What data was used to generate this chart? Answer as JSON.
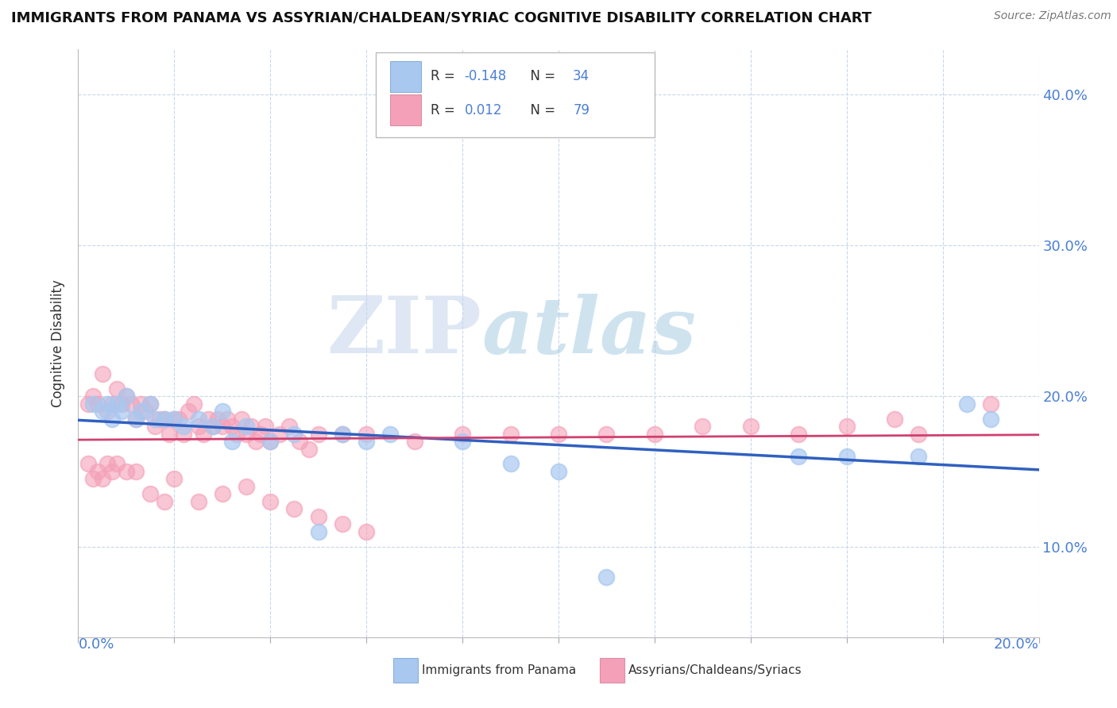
{
  "title": "IMMIGRANTS FROM PANAMA VS ASSYRIAN/CHALDEAN/SYRIAC COGNITIVE DISABILITY CORRELATION CHART",
  "source": "Source: ZipAtlas.com",
  "ylabel": "Cognitive Disability",
  "y_ticks": [
    0.1,
    0.2,
    0.3,
    0.4
  ],
  "y_tick_labels": [
    "10.0%",
    "20.0%",
    "30.0%",
    "40.0%"
  ],
  "x_range": [
    0.0,
    0.2
  ],
  "y_range": [
    0.04,
    0.43
  ],
  "blue_color": "#a8c8f0",
  "pink_color": "#f4a0b8",
  "blue_line_color": "#3060c0",
  "pink_line_color": "#d04070",
  "watermark_zip": "ZIP",
  "watermark_atlas": "atlas",
  "legend_label_blue": "Immigrants from Panama",
  "legend_label_pink": "Assyrians/Chaldeans/Syriacs",
  "blue_scatter_x": [
    0.003,
    0.005,
    0.006,
    0.007,
    0.008,
    0.009,
    0.01,
    0.012,
    0.013,
    0.015,
    0.016,
    0.018,
    0.02,
    0.022,
    0.025,
    0.028,
    0.03,
    0.032,
    0.035,
    0.04,
    0.045,
    0.05,
    0.055,
    0.06,
    0.065,
    0.08,
    0.09,
    0.1,
    0.11,
    0.15,
    0.16,
    0.175,
    0.185,
    0.19
  ],
  "blue_scatter_y": [
    0.195,
    0.19,
    0.195,
    0.185,
    0.195,
    0.19,
    0.2,
    0.185,
    0.19,
    0.195,
    0.185,
    0.185,
    0.185,
    0.18,
    0.185,
    0.18,
    0.19,
    0.17,
    0.18,
    0.17,
    0.175,
    0.11,
    0.175,
    0.17,
    0.175,
    0.17,
    0.155,
    0.15,
    0.08,
    0.16,
    0.16,
    0.16,
    0.195,
    0.185
  ],
  "pink_scatter_x": [
    0.002,
    0.003,
    0.004,
    0.005,
    0.006,
    0.007,
    0.008,
    0.009,
    0.01,
    0.011,
    0.012,
    0.013,
    0.014,
    0.015,
    0.016,
    0.017,
    0.018,
    0.019,
    0.02,
    0.021,
    0.022,
    0.023,
    0.024,
    0.025,
    0.026,
    0.027,
    0.028,
    0.029,
    0.03,
    0.031,
    0.032,
    0.033,
    0.034,
    0.035,
    0.036,
    0.037,
    0.038,
    0.039,
    0.04,
    0.042,
    0.044,
    0.046,
    0.048,
    0.05,
    0.055,
    0.06,
    0.07,
    0.08,
    0.09,
    0.1,
    0.11,
    0.12,
    0.13,
    0.14,
    0.15,
    0.16,
    0.17,
    0.175,
    0.19,
    0.002,
    0.003,
    0.004,
    0.005,
    0.006,
    0.007,
    0.008,
    0.01,
    0.012,
    0.015,
    0.018,
    0.02,
    0.025,
    0.03,
    0.035,
    0.04,
    0.045,
    0.05,
    0.055,
    0.06
  ],
  "pink_scatter_y": [
    0.195,
    0.2,
    0.195,
    0.215,
    0.19,
    0.195,
    0.205,
    0.195,
    0.2,
    0.195,
    0.185,
    0.195,
    0.19,
    0.195,
    0.18,
    0.185,
    0.185,
    0.175,
    0.185,
    0.185,
    0.175,
    0.19,
    0.195,
    0.18,
    0.175,
    0.185,
    0.18,
    0.185,
    0.18,
    0.185,
    0.18,
    0.175,
    0.185,
    0.175,
    0.18,
    0.17,
    0.175,
    0.18,
    0.17,
    0.175,
    0.18,
    0.17,
    0.165,
    0.175,
    0.175,
    0.175,
    0.17,
    0.175,
    0.175,
    0.175,
    0.175,
    0.175,
    0.18,
    0.18,
    0.175,
    0.18,
    0.185,
    0.175,
    0.195,
    0.155,
    0.145,
    0.15,
    0.145,
    0.155,
    0.15,
    0.155,
    0.15,
    0.15,
    0.135,
    0.13,
    0.145,
    0.13,
    0.135,
    0.14,
    0.13,
    0.125,
    0.12,
    0.115,
    0.11
  ]
}
